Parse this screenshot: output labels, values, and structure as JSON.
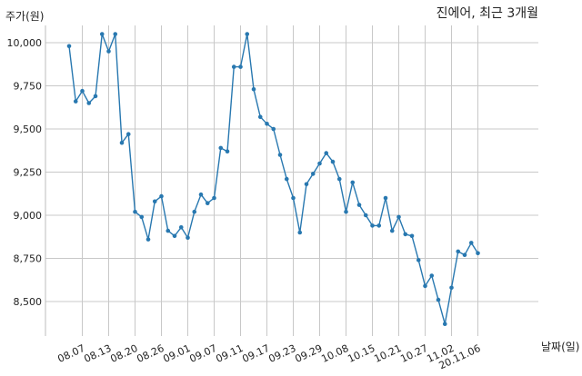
{
  "chart_data": {
    "type": "line",
    "title": "진에어, 최근 3개월",
    "ylabel": "주가(원)",
    "xlabel": "날짜(일)",
    "ylim": [
      8300,
      10100
    ],
    "y_ticks": [
      8500,
      8750,
      9000,
      9250,
      9500,
      9750,
      10000
    ],
    "y_tick_labels": [
      "8,500",
      "8,750",
      "9,000",
      "9,250",
      "9,500",
      "9,750",
      "10,000"
    ],
    "x_tick_labels": [
      "08.07",
      "08.13",
      "08.20",
      "08.26",
      "09.01",
      "09.07",
      "09.11",
      "09.17",
      "09.23",
      "09.29",
      "10.08",
      "10.15",
      "10.21",
      "10.27",
      "11.02",
      "20.11.06"
    ],
    "x_tick_index": [
      2,
      6,
      10,
      14,
      18,
      22,
      26,
      30,
      34,
      38,
      42,
      46,
      50,
      54,
      58,
      62
    ],
    "grid": true,
    "line_color": "#2878b0",
    "series": [
      {
        "values": [
          9980,
          9660,
          9720,
          9650,
          9690,
          10050,
          9950,
          10050,
          9420,
          9470,
          9020,
          8990,
          8860,
          9080,
          9110,
          8910,
          8880,
          8930,
          8870,
          9020,
          9120,
          9070,
          9100,
          9390,
          9370,
          9860,
          9860,
          10050,
          9730,
          9570,
          9530,
          9500,
          9350,
          9210,
          9100,
          8900,
          9180,
          9240,
          9300,
          9360,
          9310,
          9210,
          9020,
          9190,
          9060,
          9000,
          8940,
          8940,
          9100,
          8910,
          8990,
          8890,
          8880,
          8740,
          8590,
          8650,
          8510,
          8370,
          8580,
          8790,
          8770,
          8840,
          8780
        ]
      }
    ]
  }
}
